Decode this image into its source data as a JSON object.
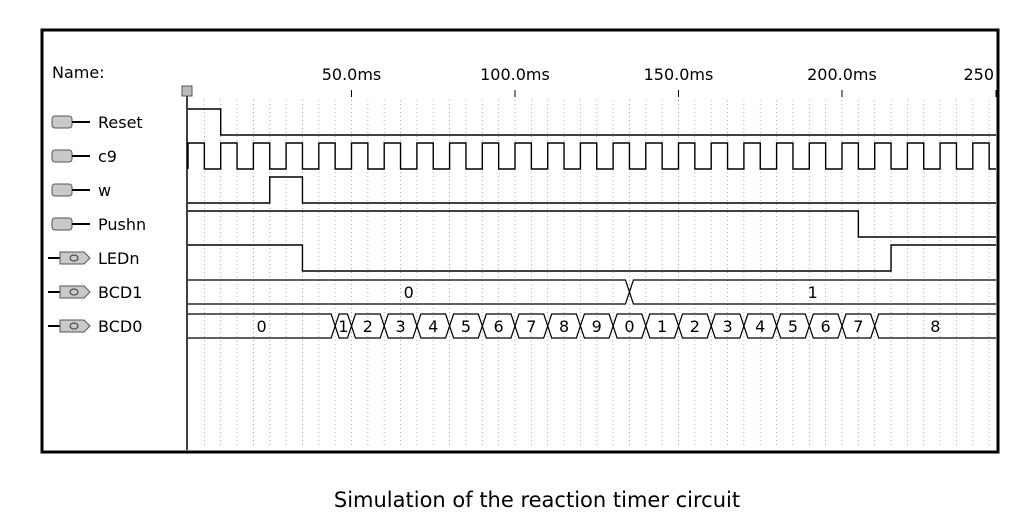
{
  "header": {
    "name_label": "Name:"
  },
  "time_ruler": {
    "unit": "ms",
    "ticks": [
      {
        "t": 50,
        "label": "50.0ms"
      },
      {
        "t": 100,
        "label": "100.0ms"
      },
      {
        "t": 150,
        "label": "150.0ms"
      },
      {
        "t": 200,
        "label": "200.0ms"
      },
      {
        "t": 250,
        "label": "250"
      }
    ]
  },
  "signals": [
    {
      "id": "reset",
      "name": "Reset",
      "kind": "input",
      "icon": "input-pin-icon",
      "type": "digital",
      "initial": 1,
      "transitions": [
        10
      ]
    },
    {
      "id": "c9",
      "name": "c9",
      "kind": "input",
      "icon": "input-pin-icon",
      "type": "clock",
      "start_level": 0,
      "first_rise": 0,
      "period": 10
    },
    {
      "id": "w",
      "name": "w",
      "kind": "input",
      "icon": "input-pin-icon",
      "type": "digital",
      "initial": 0,
      "transitions": [
        25,
        35
      ]
    },
    {
      "id": "pushn",
      "name": "Pushn",
      "kind": "input",
      "icon": "input-pin-icon",
      "type": "digital",
      "initial": 1,
      "transitions": [
        205
      ]
    },
    {
      "id": "ledn",
      "name": "LEDn",
      "kind": "output",
      "icon": "output-pin-icon",
      "type": "digital",
      "initial": 1,
      "transitions": [
        35,
        215
      ]
    },
    {
      "id": "bcd1",
      "name": "BCD1",
      "kind": "output",
      "icon": "bus-output-icon",
      "type": "bus",
      "segments": [
        {
          "start": 0,
          "end": 135,
          "value": "0"
        },
        {
          "start": 135,
          "end": 250,
          "value": "1"
        }
      ]
    },
    {
      "id": "bcd0",
      "name": "BCD0",
      "kind": "output",
      "icon": "bus-output-icon",
      "type": "bus",
      "segments": [
        {
          "start": 0,
          "end": 45,
          "value": "0"
        },
        {
          "start": 45,
          "end": 50,
          "value": "1"
        },
        {
          "start": 50,
          "end": 60,
          "value": "2"
        },
        {
          "start": 60,
          "end": 70,
          "value": "3"
        },
        {
          "start": 70,
          "end": 80,
          "value": "4"
        },
        {
          "start": 80,
          "end": 90,
          "value": "5"
        },
        {
          "start": 90,
          "end": 100,
          "value": "6"
        },
        {
          "start": 100,
          "end": 110,
          "value": "7"
        },
        {
          "start": 110,
          "end": 120,
          "value": "8"
        },
        {
          "start": 120,
          "end": 130,
          "value": "9"
        },
        {
          "start": 130,
          "end": 140,
          "value": "0"
        },
        {
          "start": 140,
          "end": 150,
          "value": "1"
        },
        {
          "start": 150,
          "end": 160,
          "value": "2"
        },
        {
          "start": 160,
          "end": 170,
          "value": "3"
        },
        {
          "start": 170,
          "end": 180,
          "value": "4"
        },
        {
          "start": 180,
          "end": 190,
          "value": "5"
        },
        {
          "start": 190,
          "end": 200,
          "value": "6"
        },
        {
          "start": 200,
          "end": 210,
          "value": "7"
        },
        {
          "start": 210,
          "end": 250,
          "value": "8"
        }
      ]
    }
  ],
  "caption": "Simulation of the reaction timer circuit"
}
